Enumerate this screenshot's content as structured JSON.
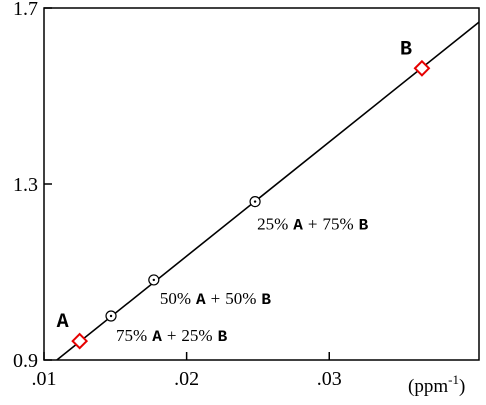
{
  "chart_data": {
    "type": "scatter",
    "title": "",
    "xlabel": "(ppm",
    "xlabel_sup": "-1",
    "xlabel_close": ")",
    "ylabel": "",
    "xlim": [
      0.01,
      0.0405
    ],
    "ylim": [
      0.9,
      1.7
    ],
    "grid": false,
    "x_ticks": [
      {
        "value": 0.01,
        "label": ".01"
      },
      {
        "value": 0.02,
        "label": ".02"
      },
      {
        "value": 0.03,
        "label": ".03"
      }
    ],
    "y_ticks": [
      {
        "value": 0.9,
        "label": "0.9"
      },
      {
        "value": 1.3,
        "label": "1.3"
      },
      {
        "value": 1.7,
        "label": "1.7"
      }
    ],
    "fit_line": {
      "x": [
        0.0109,
        0.0405
      ],
      "y": [
        0.9,
        1.668
      ]
    },
    "endpoints": [
      {
        "name": "A",
        "x": 0.0125,
        "y": 0.943,
        "color": "#e60000"
      },
      {
        "name": "B",
        "x": 0.0365,
        "y": 1.563,
        "color": "#e60000"
      }
    ],
    "mixtures": [
      {
        "x": 0.0147,
        "y": 1.0,
        "pctA": "75%",
        "pctB": "25%"
      },
      {
        "x": 0.0177,
        "y": 1.082,
        "pctA": "50%",
        "pctB": "50%"
      },
      {
        "x": 0.0248,
        "y": 1.26,
        "pctA": "25%",
        "pctB": "75%"
      }
    ],
    "mix_label_A": "A",
    "mix_label_B": "B",
    "mix_plus": "+"
  }
}
